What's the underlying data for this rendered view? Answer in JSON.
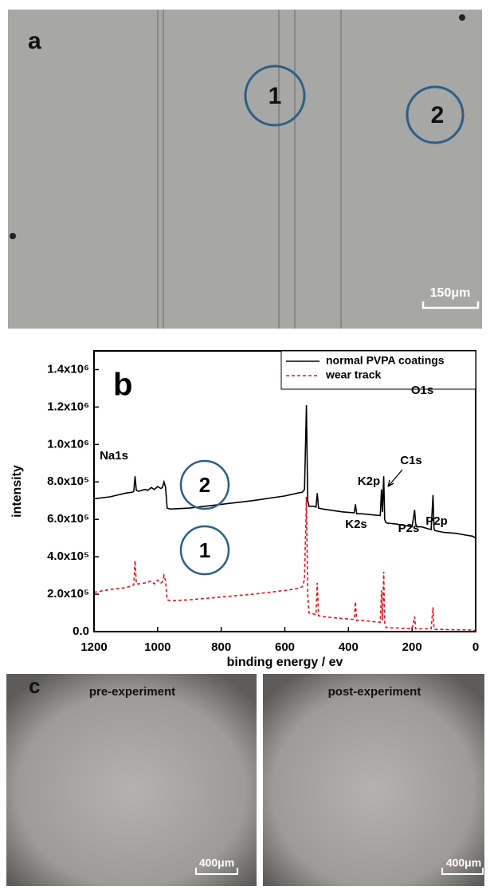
{
  "panel_a": {
    "label": "a",
    "markers": [
      "1",
      "2"
    ],
    "scale_bar": "150μm"
  },
  "chart_data": {
    "type": "line",
    "panel_label": "b",
    "x_label": "binding energy / ev",
    "y_label": "intensity",
    "x": [
      1200,
      1150,
      1100,
      1080,
      1075,
      1071,
      1067,
      1060,
      1040,
      1030,
      1020,
      1010,
      1000,
      990,
      985,
      980,
      975,
      970,
      960,
      900,
      800,
      700,
      600,
      560,
      545,
      538,
      532,
      528,
      524,
      510,
      502,
      498,
      494,
      480,
      420,
      382,
      378,
      374,
      360,
      300,
      296,
      293,
      289,
      286,
      283,
      279,
      250,
      200,
      192,
      189,
      186,
      170,
      140,
      134,
      131,
      128,
      100,
      60,
      30,
      10,
      0
    ],
    "series": [
      {
        "name": "normal PVPA coatings",
        "color": "#000000",
        "dash": false,
        "values": [
          710000,
          720000,
          740000,
          745000,
          750000,
          830000,
          755000,
          750000,
          760000,
          755000,
          770000,
          760000,
          775000,
          765000,
          770000,
          800000,
          770000,
          660000,
          655000,
          660000,
          680000,
          700000,
          725000,
          740000,
          745000,
          760000,
          1210000,
          700000,
          670000,
          670000,
          665000,
          740000,
          660000,
          655000,
          640000,
          635000,
          680000,
          630000,
          630000,
          620000,
          760000,
          640000,
          830000,
          600000,
          585000,
          580000,
          575000,
          560000,
          650000,
          580000,
          560000,
          560000,
          545000,
          730000,
          550000,
          540000,
          530000,
          525000,
          515000,
          510000,
          500000
        ]
      },
      {
        "name": "wear track",
        "color": "#e8141c",
        "dash": true,
        "values": [
          210000,
          225000,
          235000,
          245000,
          250000,
          380000,
          255000,
          255000,
          260000,
          265000,
          270000,
          255000,
          275000,
          260000,
          265000,
          300000,
          270000,
          170000,
          165000,
          170000,
          185000,
          200000,
          220000,
          230000,
          240000,
          280000,
          720000,
          200000,
          100000,
          95000,
          90000,
          260000,
          85000,
          80000,
          70000,
          65000,
          160000,
          60000,
          60000,
          50000,
          220000,
          60000,
          320000,
          50000,
          25000,
          20000,
          20000,
          15000,
          80000,
          15000,
          15000,
          15000,
          15000,
          130000,
          15000,
          12000,
          12000,
          10000,
          10000,
          8000,
          5000
        ]
      }
    ],
    "xlim": [
      1200,
      0
    ],
    "xticks": [
      1200,
      1000,
      800,
      600,
      400,
      200,
      0
    ],
    "ylim": [
      0,
      1500000
    ],
    "yticks": [
      {
        "value": 0,
        "label": "0.0"
      },
      {
        "value": 200000,
        "label": "2.0x10⁵"
      },
      {
        "value": 400000,
        "label": "4.0x10⁵"
      },
      {
        "value": 600000,
        "label": "6.0x10⁵"
      },
      {
        "value": 800000,
        "label": "8.0x10⁵"
      },
      {
        "value": 1000000,
        "label": "1.0x10⁶"
      },
      {
        "value": 1200000,
        "label": "1.2x10⁶"
      },
      {
        "value": 1400000,
        "label": "1.4x10⁶"
      }
    ],
    "legend": "top-right",
    "annotations": [
      "Na1s",
      "O1s",
      "K2p",
      "C1s",
      "K2s",
      "P2s",
      "P2p"
    ],
    "markers": [
      "2",
      "1"
    ]
  },
  "panel_c": {
    "label": "c",
    "images": [
      {
        "title": "pre-experiment",
        "scale_bar": "400μm"
      },
      {
        "title": "post-experiment",
        "scale_bar": "400μm"
      }
    ]
  }
}
